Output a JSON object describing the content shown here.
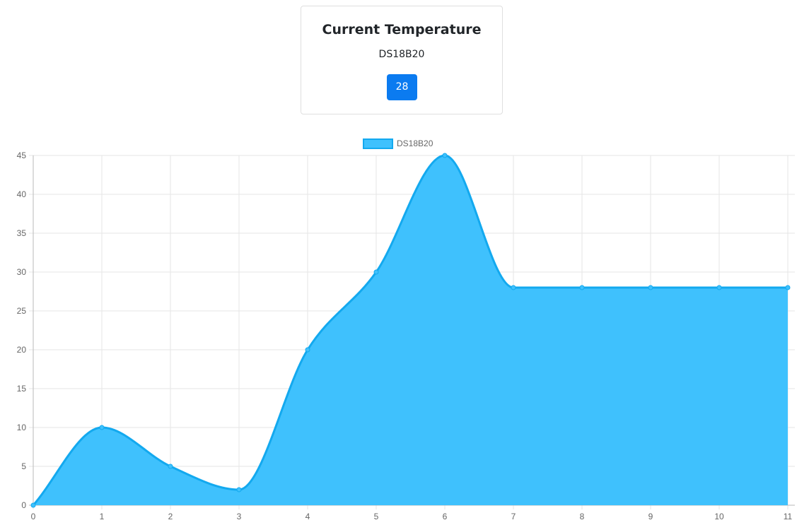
{
  "card": {
    "title": "Current Temperature",
    "sensor": "DS18B20",
    "value": "28"
  },
  "colors": {
    "fill": "#3fc1fd",
    "stroke": "#13a9ef",
    "badge": "#0b7bf0",
    "grid": "#e6e6e6"
  },
  "chart_data": {
    "type": "area",
    "title": "",
    "xlabel": "",
    "ylabel": "",
    "x": [
      0,
      1,
      2,
      3,
      4,
      5,
      6,
      7,
      8,
      9,
      10,
      11
    ],
    "series": [
      {
        "name": "DS18B20",
        "values": [
          0,
          10,
          5,
          2,
          20,
          30,
          45,
          28,
          28,
          28,
          28,
          28
        ]
      }
    ],
    "ylim": [
      0,
      45
    ],
    "yticks": [
      0,
      5,
      10,
      15,
      20,
      25,
      30,
      35,
      40,
      45
    ],
    "grid": true,
    "legend": "top-center",
    "smooth": true
  }
}
